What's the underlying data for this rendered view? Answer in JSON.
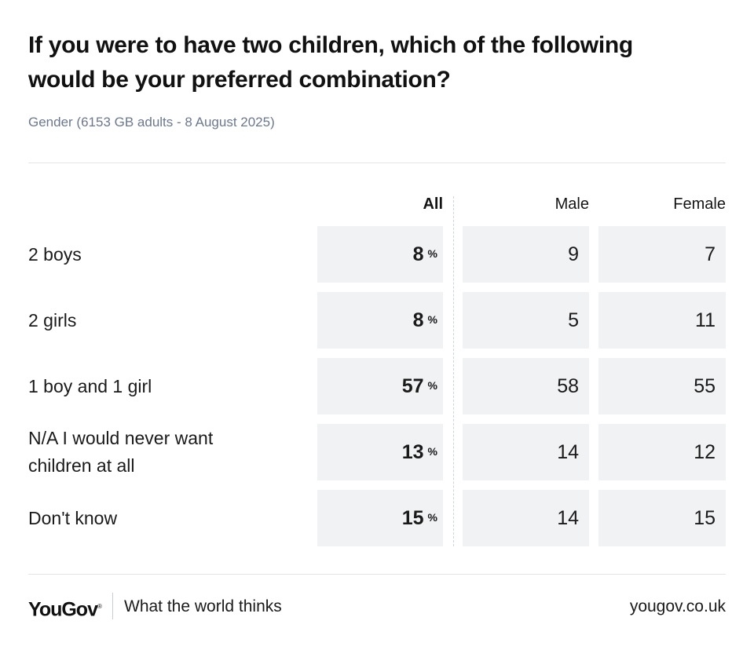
{
  "title_lines": [
    "If you were to have two children, which of the following",
    "would be your preferred combination?"
  ],
  "subtitle": "Gender (6153 GB adults - 8 August 2025)",
  "chart_data": {
    "type": "table",
    "columns": [
      "All",
      "Male",
      "Female"
    ],
    "percent_marker": "%",
    "rows": [
      {
        "label": [
          "2 boys"
        ],
        "all": "8",
        "male": "9",
        "female": "7"
      },
      {
        "label": [
          "2 girls"
        ],
        "all": "8",
        "male": "5",
        "female": "11"
      },
      {
        "label": [
          "1 boy and 1 girl"
        ],
        "all": "57",
        "male": "58",
        "female": "55"
      },
      {
        "label": [
          "N/A I would never want",
          "children at all"
        ],
        "all": "13",
        "male": "14",
        "female": "12"
      },
      {
        "label": [
          "Don't know"
        ],
        "all": "15",
        "male": "14",
        "female": "15"
      }
    ]
  },
  "footer": {
    "logo": "YouGov",
    "logo_mark": "®",
    "tagline": "What the world thinks",
    "url": "yougov.co.uk"
  },
  "colors": {
    "cell_background": "#f1f2f4",
    "subtitle": "#6b7890",
    "rule": "#e3e5ea"
  }
}
